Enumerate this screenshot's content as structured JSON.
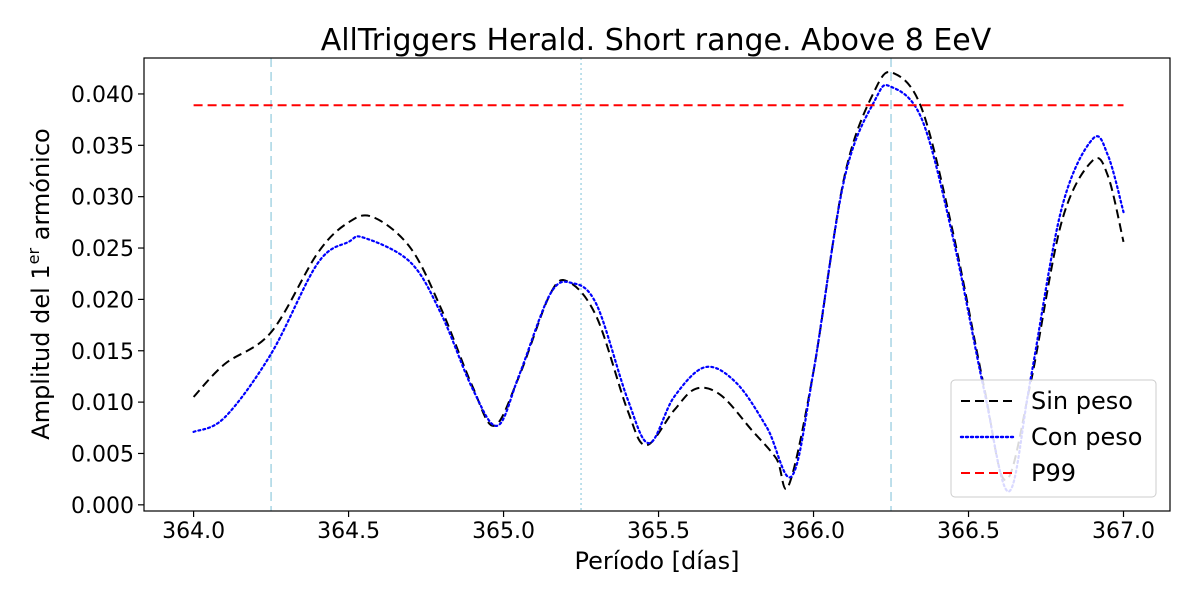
{
  "chart_data": {
    "type": "line",
    "title": "AllTriggers Herald. Short range. Above 8 EeV",
    "xlabel": "Período [días]",
    "ylabel": "Amplitud del 1^er armónico",
    "ylabel_parts": {
      "pre": "Amplitud del 1",
      "sup": "er",
      "post": " armónico"
    },
    "xlim": [
      363.84,
      367.15
    ],
    "ylim": [
      -0.0006,
      0.0435
    ],
    "x_ticks": [
      "364.0",
      "364.5",
      "365.0",
      "365.5",
      "366.0",
      "366.5",
      "367.0"
    ],
    "x_tick_values": [
      364.0,
      364.5,
      365.0,
      365.5,
      366.0,
      366.5,
      367.0
    ],
    "y_ticks": [
      "0.000",
      "0.005",
      "0.010",
      "0.015",
      "0.020",
      "0.025",
      "0.030",
      "0.035",
      "0.040"
    ],
    "y_tick_values": [
      0.0,
      0.005,
      0.01,
      0.015,
      0.02,
      0.025,
      0.03,
      0.035,
      0.04
    ],
    "grid": false,
    "legend_position": "bottom-right",
    "reference_lines": [
      {
        "x": 364.25,
        "color": "#add8e6",
        "style": "dashed"
      },
      {
        "x": 365.25,
        "color": "#add8e6",
        "style": "dotted"
      },
      {
        "x": 366.25,
        "color": "#add8e6",
        "style": "dashed"
      }
    ],
    "series": [
      {
        "name": "Sin peso",
        "color": "#000000",
        "style": "dashed",
        "x": [
          364.0,
          364.1,
          364.25,
          364.4,
          364.5,
          364.58,
          364.7,
          364.8,
          364.9,
          364.97,
          365.05,
          365.15,
          365.21,
          365.3,
          365.4,
          365.46,
          365.55,
          365.62,
          365.7,
          365.8,
          365.88,
          365.92,
          366.0,
          366.1,
          366.2,
          366.26,
          366.35,
          366.45,
          366.55,
          366.62,
          366.7,
          366.8,
          366.9,
          366.95,
          367.0
        ],
        "y": [
          0.0105,
          0.0137,
          0.0168,
          0.0245,
          0.0275,
          0.028,
          0.025,
          0.019,
          0.0115,
          0.0077,
          0.0125,
          0.0205,
          0.0217,
          0.0183,
          0.0092,
          0.0058,
          0.0092,
          0.0113,
          0.0107,
          0.0073,
          0.0045,
          0.0019,
          0.013,
          0.032,
          0.0405,
          0.042,
          0.0385,
          0.0265,
          0.0115,
          0.0024,
          0.0118,
          0.0275,
          0.0335,
          0.032,
          0.0256
        ]
      },
      {
        "name": "Con peso",
        "color": "#0000ff",
        "style": "dotted",
        "x": [
          364.0,
          364.1,
          364.25,
          364.4,
          364.5,
          364.55,
          364.7,
          364.8,
          364.9,
          364.98,
          365.05,
          365.15,
          365.22,
          365.3,
          365.4,
          365.47,
          365.55,
          365.65,
          365.75,
          365.85,
          365.93,
          366.0,
          366.1,
          366.2,
          366.25,
          366.35,
          366.45,
          366.55,
          366.63,
          366.7,
          366.8,
          366.9,
          366.95,
          367.0
        ],
        "y": [
          0.0071,
          0.0085,
          0.0147,
          0.0235,
          0.0256,
          0.026,
          0.0236,
          0.0185,
          0.0113,
          0.0077,
          0.0126,
          0.0205,
          0.0216,
          0.0195,
          0.0103,
          0.006,
          0.0105,
          0.0134,
          0.0119,
          0.0075,
          0.0028,
          0.013,
          0.0318,
          0.0395,
          0.0407,
          0.0375,
          0.026,
          0.0112,
          0.0013,
          0.0122,
          0.0288,
          0.0356,
          0.034,
          0.0285
        ]
      },
      {
        "name": "P99",
        "color": "#ff0000",
        "style": "dashed",
        "x": [
          364.0,
          367.0
        ],
        "y": [
          0.0389,
          0.0389
        ]
      }
    ]
  }
}
